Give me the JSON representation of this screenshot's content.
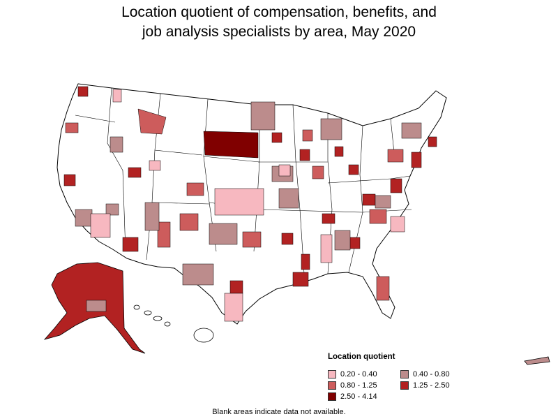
{
  "title_line1": "Location quotient of compensation, benefits, and",
  "title_line2": "job analysis specialists by area, May 2020",
  "legend": {
    "title": "Location quotient",
    "items": [
      {
        "label": "0.20 - 0.40",
        "color": "#f7b8c0"
      },
      {
        "label": "0.40 - 0.80",
        "color": "#bc8c8c"
      },
      {
        "label": "0.80 - 1.25",
        "color": "#cd5c5c"
      },
      {
        "label": "1.25 - 2.50",
        "color": "#b22222"
      },
      {
        "label": "2.50 - 4.14",
        "color": "#800000"
      }
    ]
  },
  "footnote": "Blank areas indicate data not available."
}
